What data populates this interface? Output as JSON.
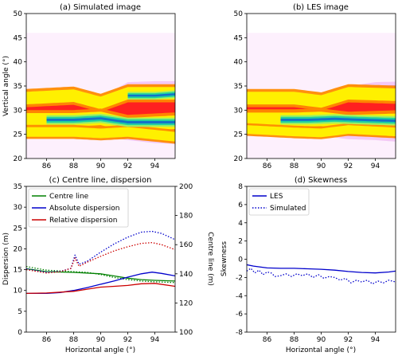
{
  "chart_data": [
    {
      "type": "heatmap",
      "title": "(a) Simulated image",
      "ylabel": "Vertical angle (°)",
      "xlabel": "",
      "xlim": [
        84.5,
        95.5
      ],
      "ylim": [
        20,
        50
      ],
      "xticks": [
        86,
        88,
        90,
        92,
        94
      ],
      "yticks": [
        20,
        25,
        30,
        35,
        40,
        45,
        50
      ],
      "background_band": [
        20,
        46
      ],
      "plume": {
        "base_center": [
          [
            84.5,
            28.8
          ],
          [
            88,
            29.0
          ],
          [
            90,
            28.6
          ],
          [
            92,
            29.8
          ],
          [
            94,
            29.6
          ],
          [
            95.5,
            29.5
          ]
        ],
        "base_halfwidth": [
          [
            84.5,
            4.5
          ],
          [
            88,
            4.2
          ],
          [
            90,
            4.0
          ],
          [
            92,
            6.0
          ],
          [
            94,
            6.4
          ],
          [
            95.5,
            6.5
          ]
        ],
        "cores": [
          {
            "level": "yellow",
            "center": [
              [
                84.5,
                32.5
              ],
              [
                88,
                33.0
              ],
              [
                90,
                31.5
              ],
              [
                92,
                33.5
              ],
              [
                95.5,
                33.5
              ]
            ],
            "halfwidth": 1.3
          },
          {
            "level": "yellow",
            "center": [
              [
                84.5,
                28.0
              ],
              [
                88,
                28.0
              ],
              [
                90,
                28.3
              ],
              [
                92,
                27.0
              ],
              [
                95.5,
                27.5
              ]
            ],
            "halfwidth": 1.4
          },
          {
            "level": "yellow",
            "center": [
              [
                84.5,
                25.5
              ],
              [
                88,
                25.5
              ],
              [
                90,
                25.2
              ],
              [
                92,
                25.5
              ],
              [
                95.5,
                24.5
              ]
            ],
            "halfwidth": 1.0
          },
          {
            "level": "green",
            "center": [
              [
                86,
                28.0
              ],
              [
                88,
                28.0
              ],
              [
                90,
                28.3
              ],
              [
                92,
                27.5
              ],
              [
                95.5,
                27.5
              ]
            ],
            "halfwidth": 0.6
          },
          {
            "level": "green",
            "center": [
              [
                92,
                33.0
              ],
              [
                94,
                33.0
              ],
              [
                95.5,
                33.3
              ]
            ],
            "halfwidth": 0.5
          }
        ]
      }
    },
    {
      "type": "heatmap",
      "title": "(b) LES image",
      "ylabel": "",
      "xlabel": "",
      "xlim": [
        84.5,
        95.5
      ],
      "ylim": [
        20,
        50
      ],
      "xticks": [
        86,
        88,
        90,
        92,
        94
      ],
      "yticks": [
        20,
        25,
        30,
        35,
        40,
        45,
        50
      ],
      "background_band": [
        20,
        46
      ],
      "plume": {
        "base_center": [
          [
            84.5,
            29.0
          ],
          [
            88,
            28.8
          ],
          [
            90,
            28.6
          ],
          [
            92,
            29.5
          ],
          [
            94,
            29.8
          ],
          [
            95.5,
            29.7
          ]
        ],
        "base_halfwidth": [
          [
            84.5,
            4.3
          ],
          [
            88,
            4.1
          ],
          [
            90,
            3.9
          ],
          [
            92,
            5.5
          ],
          [
            94,
            6.0
          ],
          [
            95.5,
            6.2
          ]
        ],
        "cores": [
          {
            "level": "yellow",
            "center": [
              [
                84.5,
                32.5
              ],
              [
                88,
                32.5
              ],
              [
                90,
                31.8
              ],
              [
                92,
                33.5
              ],
              [
                95.5,
                33.2
              ]
            ],
            "halfwidth": 1.3
          },
          {
            "level": "yellow",
            "center": [
              [
                84.5,
                28.0
              ],
              [
                88,
                28.0
              ],
              [
                90,
                28.2
              ],
              [
                92,
                27.5
              ],
              [
                95.5,
                27.8
              ]
            ],
            "halfwidth": 1.5
          },
          {
            "level": "yellow",
            "center": [
              [
                84.5,
                26.0
              ],
              [
                88,
                25.5
              ],
              [
                90,
                25.3
              ],
              [
                92,
                26.0
              ],
              [
                95.5,
                25.5
              ]
            ],
            "halfwidth": 0.9
          },
          {
            "level": "green",
            "center": [
              [
                87,
                28.0
              ],
              [
                89,
                28.0
              ],
              [
                91,
                28.2
              ],
              [
                93,
                28.0
              ],
              [
                95.5,
                27.8
              ]
            ],
            "halfwidth": 0.6
          }
        ]
      }
    },
    {
      "type": "line",
      "title": "(c) Centre line, dispersion",
      "xlabel": "Horizontal angle (°)",
      "ylabel": "Dispersion (m)",
      "ylabel_right": "Centre line (m)",
      "xlim": [
        84.5,
        95.5
      ],
      "ylim": [
        0,
        35
      ],
      "ylim_right": [
        100,
        200
      ],
      "xticks": [
        86,
        88,
        90,
        92,
        94
      ],
      "yticks": [
        0,
        5,
        10,
        15,
        20,
        25,
        30,
        35
      ],
      "yticks_right": [
        100,
        120,
        140,
        160,
        180,
        200
      ],
      "legend": "top-left",
      "legend_entries": [
        "Centre line",
        "Absolute dispersion",
        "Relative dispersion"
      ],
      "series": [
        {
          "name": "Centre line",
          "axis": "right",
          "color": "#008000",
          "style": "solid",
          "x": [
            84.5,
            86,
            88,
            90,
            91,
            92,
            93,
            94,
            95.5
          ],
          "y": [
            143.5,
            141.5,
            141.0,
            140.0,
            138.5,
            137.0,
            136.0,
            135.5,
            135.0
          ]
        },
        {
          "name": "Centre line",
          "axis": "right",
          "color": "#008000",
          "style": "dotted",
          "x": [
            84.5,
            86,
            88,
            89,
            90,
            91,
            92,
            93,
            94,
            95.5
          ],
          "y": [
            145.0,
            142.5,
            141.5,
            141.0,
            139.5,
            137.5,
            136.0,
            135.0,
            134.5,
            134.0
          ]
        },
        {
          "name": "Absolute dispersion",
          "axis": "left",
          "color": "#0000cc",
          "style": "solid",
          "x": [
            84.5,
            86,
            87,
            88,
            89,
            90,
            91,
            92,
            93,
            93.8,
            94.5,
            95.5
          ],
          "y": [
            9.3,
            9.3,
            9.5,
            10.0,
            10.7,
            11.5,
            12.3,
            13.2,
            14.0,
            14.4,
            14.1,
            13.5
          ]
        },
        {
          "name": "Absolute dispersion",
          "axis": "left",
          "color": "#0000cc",
          "style": "dotted",
          "x": [
            84.5,
            86,
            87,
            87.8,
            88.1,
            88.4,
            89,
            90,
            91,
            92,
            93,
            93.8,
            94.5,
            95.5
          ],
          "y": [
            15.2,
            14.4,
            14.6,
            15.3,
            18.5,
            16.3,
            17.0,
            19.2,
            21.2,
            22.8,
            24.0,
            24.2,
            23.7,
            22.2
          ]
        },
        {
          "name": "Relative dispersion",
          "axis": "left",
          "color": "#cc0000",
          "style": "solid",
          "x": [
            84.5,
            86,
            88,
            89,
            90,
            91,
            92,
            93,
            94,
            95.5
          ],
          "y": [
            9.3,
            9.4,
            9.8,
            10.3,
            10.8,
            11.0,
            11.2,
            11.6,
            11.7,
            11.0
          ]
        },
        {
          "name": "Relative dispersion",
          "axis": "left",
          "color": "#cc0000",
          "style": "dotted",
          "x": [
            84.5,
            86,
            87,
            87.8,
            88.1,
            88.4,
            89,
            90,
            91,
            92,
            93,
            93.8,
            94.5,
            95.5
          ],
          "y": [
            15.0,
            14.2,
            14.5,
            15.3,
            17.8,
            15.8,
            16.8,
            18.2,
            19.5,
            20.5,
            21.3,
            21.5,
            21.0,
            19.8
          ]
        }
      ]
    },
    {
      "type": "line",
      "title": "(d) Skewness",
      "xlabel": "Horizontal angle (°)",
      "ylabel": "Skewness",
      "xlim": [
        84.5,
        95.5
      ],
      "ylim": [
        -8,
        8
      ],
      "xticks": [
        86,
        88,
        90,
        92,
        94
      ],
      "yticks": [
        -8,
        -6,
        -4,
        -2,
        0,
        2,
        4,
        6,
        8
      ],
      "legend": "top-left",
      "legend_entries": [
        "LES",
        "Simulated"
      ],
      "series": [
        {
          "name": "LES",
          "color": "#0000cc",
          "style": "solid",
          "x": [
            84.5,
            85,
            86,
            87,
            88,
            89,
            90,
            91,
            92,
            93,
            94,
            95,
            95.5
          ],
          "y": [
            -0.6,
            -0.75,
            -0.95,
            -1.0,
            -1.0,
            -1.05,
            -1.1,
            -1.2,
            -1.35,
            -1.45,
            -1.5,
            -1.4,
            -1.3
          ]
        },
        {
          "name": "Simulated",
          "color": "#0000cc",
          "style": "dotted",
          "x": [
            84.5,
            84.8,
            85.1,
            85.4,
            85.7,
            86,
            86.3,
            86.6,
            87,
            87.4,
            87.8,
            88.2,
            88.6,
            89,
            89.4,
            89.8,
            90.2,
            90.6,
            91,
            91.4,
            91.8,
            92.2,
            92.6,
            93,
            93.4,
            93.8,
            94.2,
            94.6,
            95,
            95.5
          ],
          "y": [
            -1.3,
            -1.0,
            -1.5,
            -1.2,
            -1.7,
            -1.4,
            -1.5,
            -1.9,
            -1.8,
            -1.6,
            -1.9,
            -1.6,
            -1.8,
            -1.6,
            -2.0,
            -1.7,
            -2.1,
            -1.9,
            -2.0,
            -2.3,
            -2.1,
            -2.6,
            -2.3,
            -2.5,
            -2.3,
            -2.7,
            -2.4,
            -2.6,
            -2.3,
            -2.5
          ]
        }
      ]
    }
  ]
}
